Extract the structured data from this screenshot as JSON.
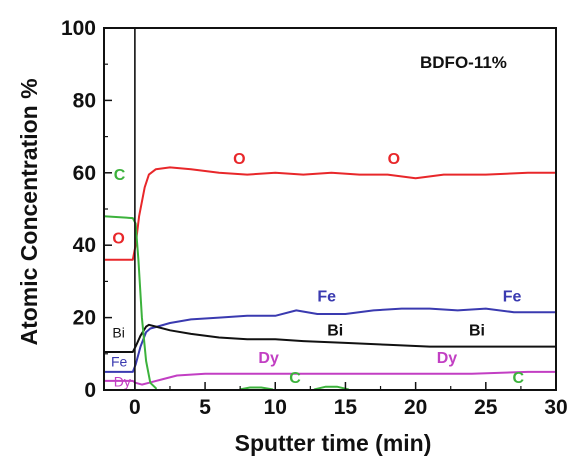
{
  "chart_data": {
    "type": "line",
    "title": "",
    "annotation": "BDFO-11%",
    "xlabel": "Sputter time (min)",
    "ylabel": "Atomic Concentration %",
    "xlim": [
      -2.2,
      30
    ],
    "ylim": [
      0,
      100
    ],
    "xticks": [
      "0",
      "5",
      "10",
      "15",
      "20",
      "25",
      "30"
    ],
    "yticks": [
      "0",
      "20",
      "40",
      "60",
      "80",
      "100"
    ],
    "grid": false,
    "legend": "none",
    "marker_x": 0,
    "series": [
      {
        "name": "O",
        "color": "#e8272a",
        "x": [
          -2.2,
          -0.15,
          0.05,
          0.3,
          0.7,
          1.0,
          1.5,
          2.5,
          4,
          6,
          8,
          10,
          12,
          14,
          16,
          18,
          20,
          22,
          25,
          28,
          30
        ],
        "y": [
          36,
          36,
          40,
          48,
          56,
          59.5,
          61,
          61.5,
          61,
          60,
          59.5,
          60,
          59.5,
          60,
          59.5,
          59.5,
          58.5,
          59.5,
          59.5,
          60,
          60
        ]
      },
      {
        "name": "Fe",
        "color": "#3a3ab0",
        "x": [
          -2.2,
          -0.15,
          0.05,
          0.4,
          0.8,
          1.1,
          1.6,
          2.5,
          4,
          6,
          8,
          10,
          11.5,
          13,
          15,
          17,
          19,
          21,
          23,
          25,
          27,
          30
        ],
        "y": [
          5,
          5,
          7,
          12,
          16,
          17,
          17.5,
          18.5,
          19.5,
          20,
          20.5,
          20.5,
          22,
          21,
          21,
          22,
          22.5,
          22.5,
          22,
          22.5,
          21.5,
          21.5
        ]
      },
      {
        "name": "Bi",
        "color": "#111111",
        "x": [
          -2.2,
          -0.15,
          0.05,
          0.4,
          0.8,
          1.0,
          1.5,
          2.5,
          4,
          6,
          8,
          10,
          12,
          15,
          18,
          21,
          24,
          27,
          30
        ],
        "y": [
          10.5,
          10.5,
          12,
          15,
          17.5,
          18,
          17.5,
          16.5,
          15.5,
          14.5,
          14,
          14,
          13.5,
          13,
          12.5,
          12,
          12,
          12,
          12
        ]
      },
      {
        "name": "Dy",
        "color": "#c23fc3",
        "x": [
          -2.2,
          -0.15,
          0.05,
          0.5,
          1,
          2,
          3,
          5,
          8,
          12,
          16,
          20,
          24,
          28,
          30
        ],
        "y": [
          2.5,
          2.5,
          2,
          1.5,
          2,
          3,
          4,
          4.5,
          4.5,
          4.5,
          4.5,
          4.5,
          4.5,
          5,
          5
        ]
      },
      {
        "name": "C",
        "color": "#3cb23c",
        "x": [
          -2.2,
          -0.15,
          0.05,
          0.25,
          0.5,
          0.8,
          1.1,
          1.5
        ],
        "y": [
          48,
          47.5,
          46,
          36,
          20,
          8,
          2,
          0.5
        ]
      },
      {
        "name": "C",
        "color": "#3cb23c",
        "x": [
          7.5,
          8.2,
          9.0,
          9.8
        ],
        "y": [
          0.2,
          0.7,
          0.7,
          0.2
        ]
      },
      {
        "name": "C",
        "color": "#3cb23c",
        "x": [
          12.8,
          13.6,
          14.4,
          15.2
        ],
        "y": [
          0.2,
          0.9,
          0.9,
          0.2
        ]
      }
    ],
    "labels": [
      {
        "text": "O",
        "color": "#e8272a",
        "x": -1.6,
        "y": 40.5
      },
      {
        "text": "O",
        "color": "#e8272a",
        "x": 7.0,
        "y": 62.5
      },
      {
        "text": "O",
        "color": "#e8272a",
        "x": 18.0,
        "y": 62.5
      },
      {
        "text": "C",
        "color": "#3cb23c",
        "x": -1.5,
        "y": 58
      },
      {
        "text": "C",
        "color": "#3cb23c",
        "x": 11.0,
        "y": 2
      },
      {
        "text": "C",
        "color": "#3cb23c",
        "x": 26.9,
        "y": 2
      },
      {
        "text": "Fe",
        "color": "#3a3ab0",
        "x": 13.0,
        "y": 24.5
      },
      {
        "text": "Fe",
        "color": "#3a3ab0",
        "x": 26.2,
        "y": 24.5
      },
      {
        "text": "Fe",
        "color": "#3a3ab0",
        "x": -1.7,
        "y": 6.5
      },
      {
        "text": "Bi",
        "color": "#111111",
        "x": -1.6,
        "y": 14.5
      },
      {
        "text": "Bi",
        "color": "#111111",
        "x": 13.7,
        "y": 15.0
      },
      {
        "text": "Bi",
        "color": "#111111",
        "x": 23.8,
        "y": 15.0
      },
      {
        "text": "Dy",
        "color": "#c23fc3",
        "x": 8.8,
        "y": 7.5
      },
      {
        "text": "Dy",
        "color": "#c23fc3",
        "x": 21.5,
        "y": 7.5
      },
      {
        "text": "Dy",
        "color": "#c23fc3",
        "x": -1.5,
        "y": 1.0
      }
    ]
  }
}
